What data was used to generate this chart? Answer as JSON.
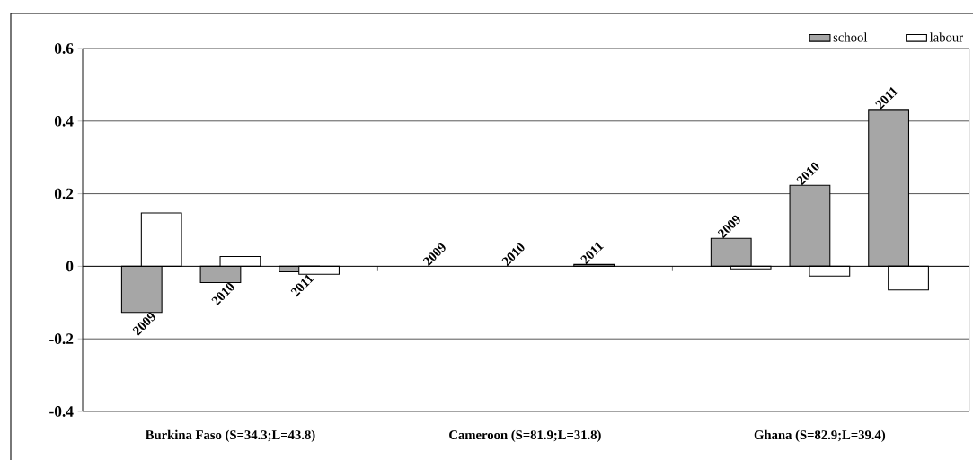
{
  "chart_data": {
    "type": "bar",
    "categories": [
      "2009",
      "2010",
      "2011",
      "2009",
      "2010",
      "2011",
      "2009",
      "2010",
      "2011"
    ],
    "series": [
      {
        "name": "school",
        "color": "#a6a6a6",
        "values": [
          -0.127,
          -0.045,
          -0.015,
          null,
          null,
          0.005,
          0.077,
          0.223,
          0.432
        ]
      },
      {
        "name": "labour",
        "color": "#ffffff",
        "values": [
          0.147,
          0.027,
          -0.022,
          null,
          null,
          null,
          -0.007,
          -0.027,
          -0.065
        ]
      }
    ],
    "ylim": [
      -0.4,
      0.6
    ],
    "yticks": [
      -0.4,
      -0.2,
      0,
      0.2,
      0.4,
      0.6
    ],
    "grid": "y",
    "legend": "top right",
    "annotations": [
      "Burkina Faso (S=34.3;L=43.8)",
      "Cameroon (S=81.9;L=31.8)",
      "Ghana (S=82.9;L=39.4)"
    ]
  }
}
